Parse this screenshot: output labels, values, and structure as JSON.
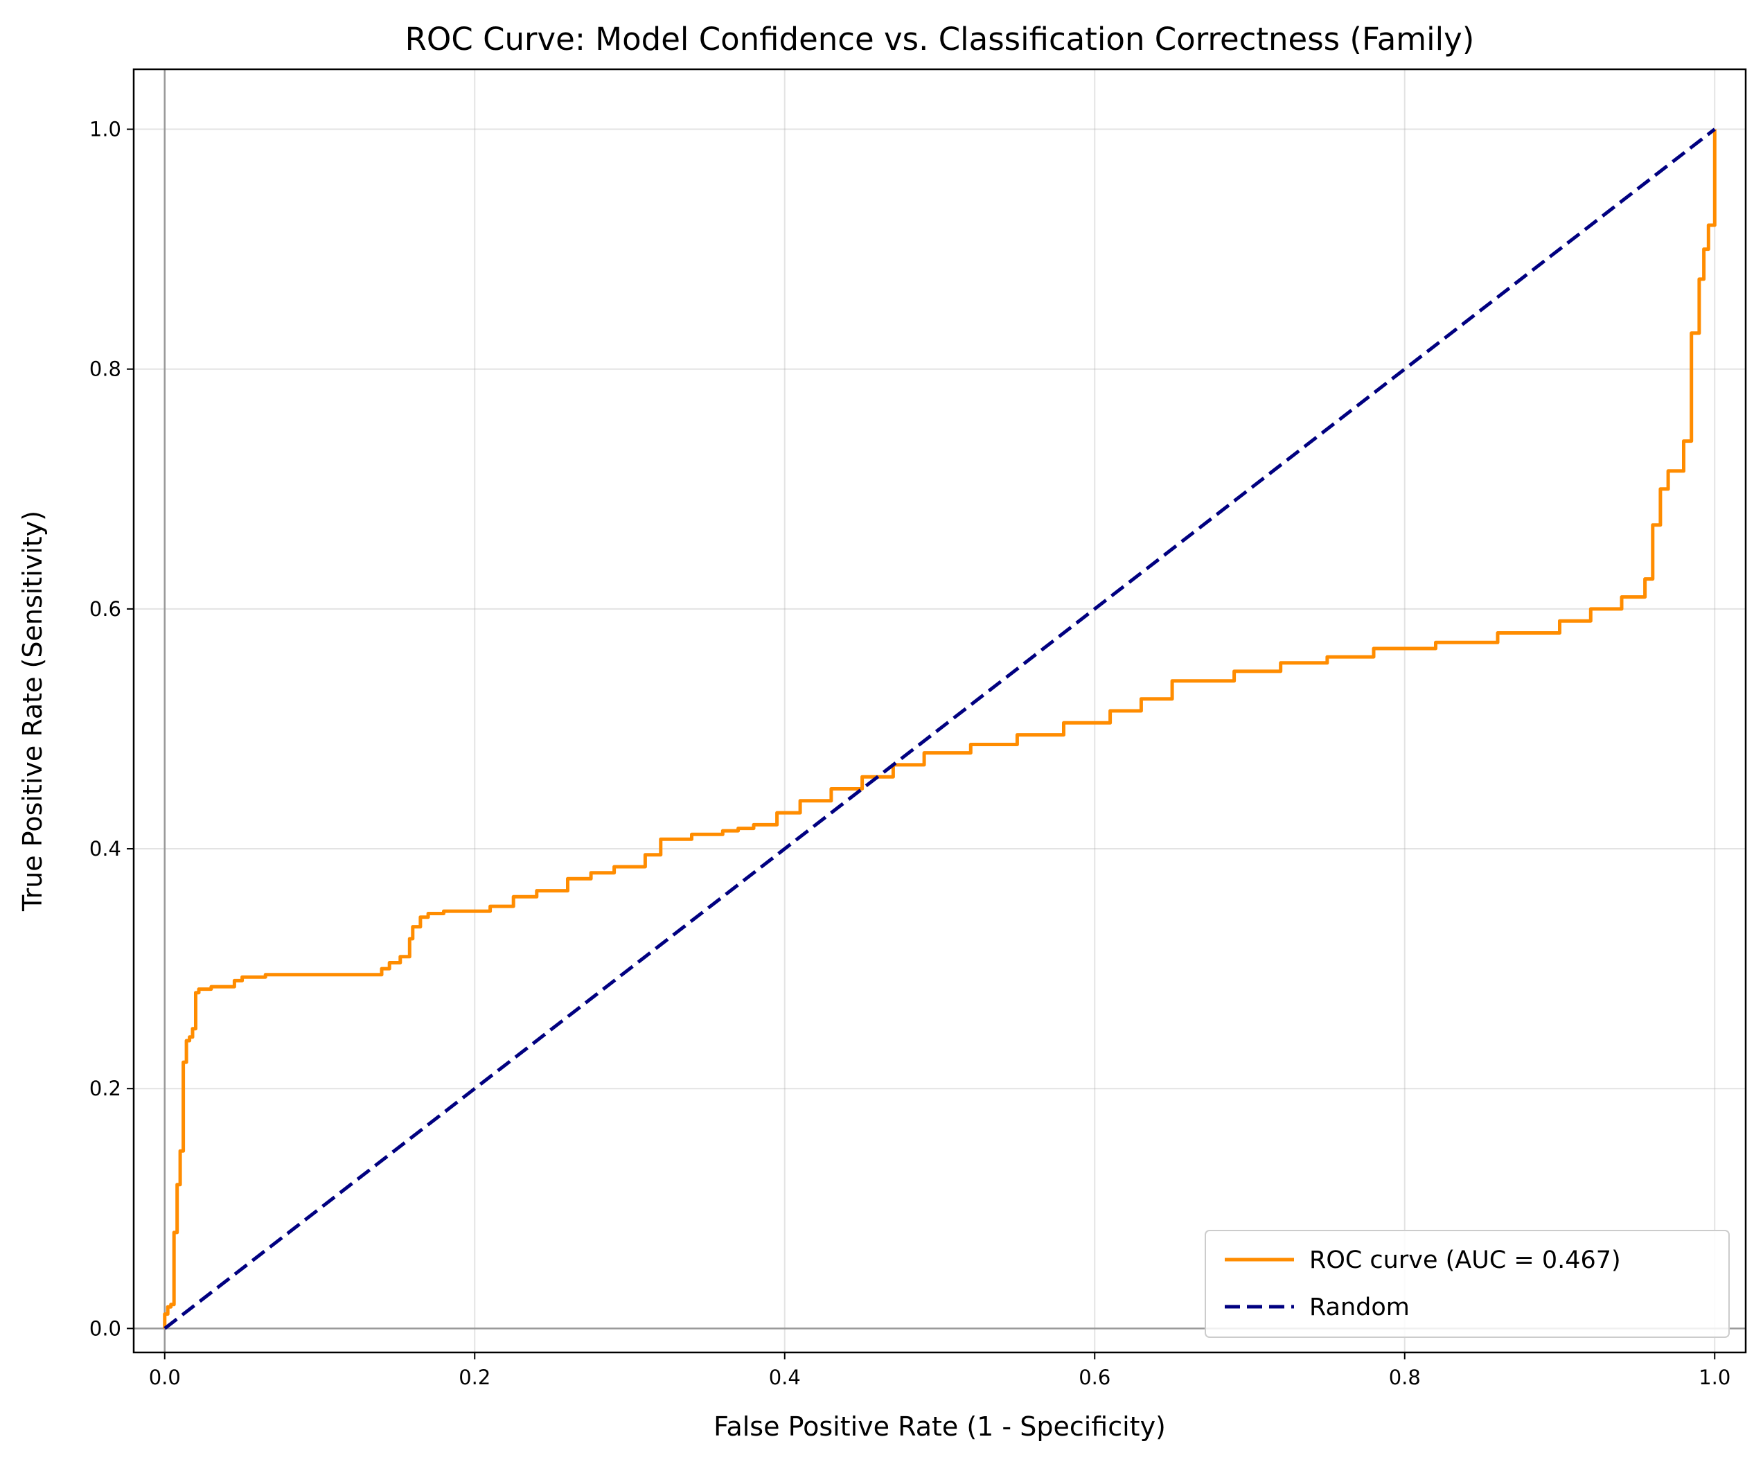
{
  "chart_data": {
    "type": "line",
    "title": "ROC Curve: Model Confidence vs. Classification Correctness (Family)",
    "xlabel": "False Positive Rate (1 - Specificity)",
    "ylabel": "True Positive Rate (Sensitivity)",
    "xlim": [
      -0.02,
      1.02
    ],
    "ylim": [
      -0.02,
      1.05
    ],
    "xticks": [
      "0.0",
      "0.2",
      "0.4",
      "0.6",
      "0.8",
      "1.0"
    ],
    "yticks": [
      "0.0",
      "0.2",
      "0.4",
      "0.6",
      "0.8",
      "1.0"
    ],
    "grid": true,
    "legend_position": "lower-right",
    "series": [
      {
        "name": "ROC curve (AUC = 0.467)",
        "color": "#ff8c00",
        "style": "solid",
        "x": [
          0.0,
          0.0,
          0.002,
          0.002,
          0.004,
          0.004,
          0.006,
          0.006,
          0.008,
          0.008,
          0.01,
          0.01,
          0.012,
          0.012,
          0.014,
          0.014,
          0.016,
          0.016,
          0.018,
          0.018,
          0.02,
          0.02,
          0.022,
          0.022,
          0.03,
          0.03,
          0.045,
          0.045,
          0.05,
          0.05,
          0.065,
          0.065,
          0.14,
          0.14,
          0.145,
          0.145,
          0.152,
          0.152,
          0.158,
          0.158,
          0.16,
          0.16,
          0.165,
          0.165,
          0.17,
          0.17,
          0.18,
          0.18,
          0.21,
          0.21,
          0.225,
          0.225,
          0.24,
          0.24,
          0.26,
          0.26,
          0.275,
          0.275,
          0.29,
          0.29,
          0.31,
          0.31,
          0.32,
          0.32,
          0.34,
          0.34,
          0.36,
          0.36,
          0.37,
          0.37,
          0.38,
          0.38,
          0.395,
          0.395,
          0.41,
          0.41,
          0.43,
          0.43,
          0.45,
          0.45,
          0.47,
          0.47,
          0.49,
          0.49,
          0.52,
          0.52,
          0.55,
          0.55,
          0.58,
          0.58,
          0.61,
          0.61,
          0.63,
          0.63,
          0.65,
          0.65,
          0.69,
          0.69,
          0.72,
          0.72,
          0.75,
          0.75,
          0.78,
          0.78,
          0.82,
          0.82,
          0.86,
          0.86,
          0.9,
          0.9,
          0.92,
          0.92,
          0.94,
          0.94,
          0.955,
          0.955,
          0.96,
          0.96,
          0.965,
          0.965,
          0.97,
          0.97,
          0.98,
          0.98,
          0.985,
          0.985,
          0.99,
          0.99,
          0.993,
          0.993,
          0.996,
          0.996,
          1.0,
          1.0
        ],
        "y": [
          0.0,
          0.012,
          0.012,
          0.018,
          0.018,
          0.02,
          0.02,
          0.08,
          0.08,
          0.12,
          0.12,
          0.148,
          0.148,
          0.222,
          0.222,
          0.24,
          0.24,
          0.243,
          0.243,
          0.25,
          0.25,
          0.28,
          0.28,
          0.283,
          0.283,
          0.285,
          0.285,
          0.29,
          0.29,
          0.293,
          0.293,
          0.295,
          0.295,
          0.3,
          0.3,
          0.305,
          0.305,
          0.31,
          0.31,
          0.325,
          0.325,
          0.335,
          0.335,
          0.343,
          0.343,
          0.346,
          0.346,
          0.348,
          0.348,
          0.352,
          0.352,
          0.36,
          0.36,
          0.365,
          0.365,
          0.375,
          0.375,
          0.38,
          0.38,
          0.385,
          0.385,
          0.395,
          0.395,
          0.408,
          0.408,
          0.412,
          0.412,
          0.415,
          0.415,
          0.417,
          0.417,
          0.42,
          0.42,
          0.43,
          0.43,
          0.44,
          0.44,
          0.45,
          0.45,
          0.46,
          0.46,
          0.47,
          0.47,
          0.48,
          0.48,
          0.487,
          0.487,
          0.495,
          0.495,
          0.505,
          0.505,
          0.515,
          0.515,
          0.525,
          0.525,
          0.54,
          0.54,
          0.548,
          0.548,
          0.555,
          0.555,
          0.56,
          0.56,
          0.567,
          0.567,
          0.572,
          0.572,
          0.58,
          0.58,
          0.59,
          0.59,
          0.6,
          0.6,
          0.61,
          0.61,
          0.625,
          0.625,
          0.67,
          0.67,
          0.7,
          0.7,
          0.715,
          0.715,
          0.74,
          0.74,
          0.83,
          0.83,
          0.875,
          0.875,
          0.9,
          0.9,
          0.92,
          0.92,
          1.0
        ]
      },
      {
        "name": "Random",
        "color": "#000080",
        "style": "dashed",
        "x": [
          0,
          1
        ],
        "y": [
          0,
          1
        ]
      }
    ]
  }
}
